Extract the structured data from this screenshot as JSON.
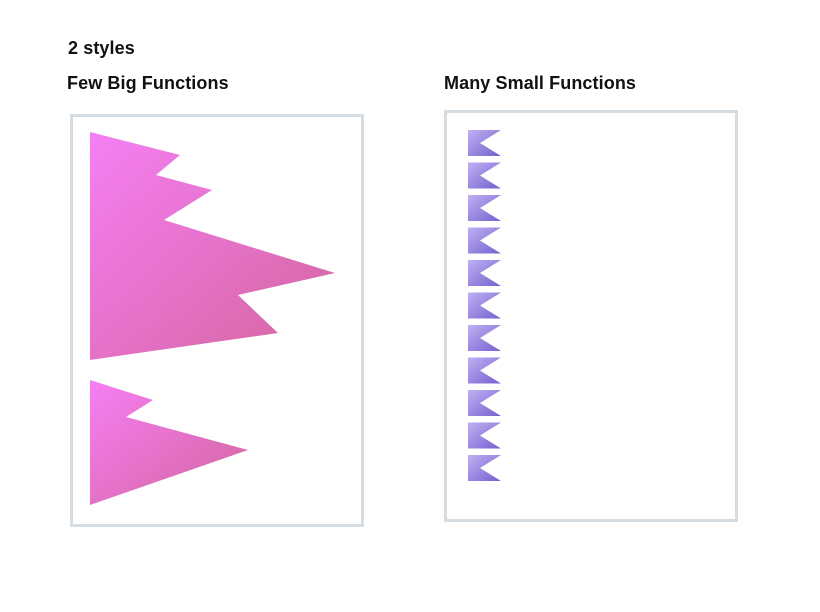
{
  "title": "2 styles",
  "left": {
    "title": "Few Big Functions",
    "shape_count": 2,
    "gradient": {
      "from": "#f57ff5",
      "to": "#d4659c"
    }
  },
  "right": {
    "title": "Many Small Functions",
    "shape_count": 11,
    "gradient": {
      "from": "#c0b0f2",
      "to": "#7460d0"
    }
  },
  "colors": {
    "panel_border": "#d5dde3",
    "text": "#111111",
    "background": "#ffffff"
  }
}
